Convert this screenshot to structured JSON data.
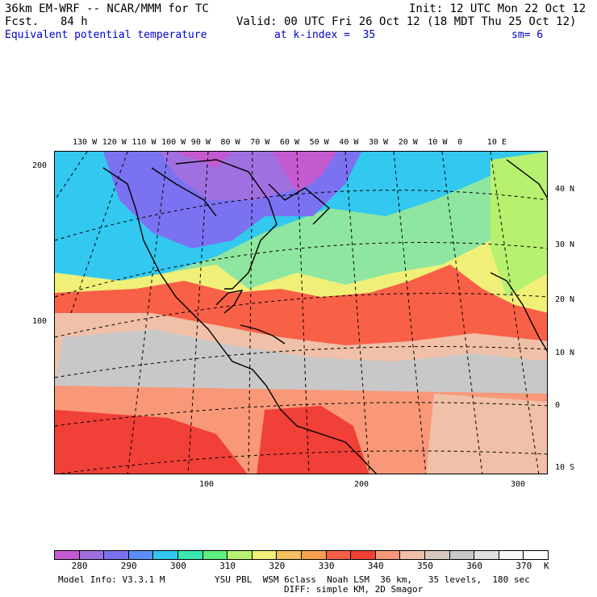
{
  "header": {
    "model_title": "36km EM-WRF -- NCAR/MMM for TC",
    "init_time": "Init: 12 UTC Mon 22 Oct 12",
    "fcst_label": "Fcst.",
    "fcst_hours": "84 h",
    "valid_time": "Valid: 00 UTC Fri 26 Oct 12 (18 MDT Thu 25 Oct 12)",
    "field_name": "Equivalent potential temperature",
    "level": "at k-index =  35",
    "smoothing": "sm= 6"
  },
  "map": {
    "projection_lon_labels": [
      "130 W",
      "120 W",
      "110 W",
      "100 W",
      "90 W",
      "80 W",
      "70 W",
      "60 W",
      "50 W",
      "40 W",
      "30 W",
      "20 W",
      "10 W",
      "0",
      "10 E"
    ],
    "lat_labels": [
      "40 N",
      "30 N",
      "20 N",
      "10 N",
      "0",
      "10 S"
    ],
    "grid_x_labels": [
      "100",
      "200",
      "300"
    ],
    "grid_y_labels": [
      "200",
      "100"
    ]
  },
  "colorbar": {
    "colors": [
      "#c45ad0",
      "#a070e0",
      "#7a72f0",
      "#5a8ff8",
      "#32c8f0",
      "#38e8b0",
      "#60f080",
      "#b8f070",
      "#f0f078",
      "#f8c060",
      "#f8a050",
      "#f86048",
      "#f04038",
      "#f89878",
      "#f0c0a8",
      "#d8c8c0",
      "#c8c8c8",
      "#e0e0e0",
      "#f8f8f8",
      "#ffffff"
    ],
    "labels": [
      "280",
      "290",
      "300",
      "310",
      "320",
      "330",
      "340",
      "350",
      "360",
      "370"
    ],
    "unit": "K"
  },
  "footer": {
    "model_info": "Model Info: V3.3.1 M",
    "physics": "YSU PBL  WSM 6class  Noah LSM  36 km,   35 levels,  180 sec",
    "diffusion": "DIFF: simple KM, 2D Smagor"
  }
}
